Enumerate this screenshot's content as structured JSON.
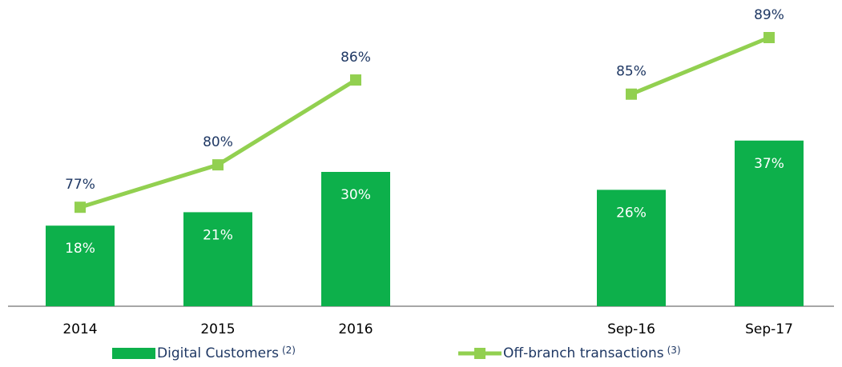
{
  "chart_data": {
    "type": "bar_line",
    "categories": [
      "2014",
      "2015",
      "2016",
      null,
      "Sep-16",
      "Sep-17"
    ],
    "ylim": [
      0,
      60
    ],
    "y2lim": [
      70,
      89
    ],
    "legend": "bottom",
    "series": [
      {
        "name": "Digital Customers",
        "footnote": "(2)",
        "type": "bar",
        "color": "#0db04b",
        "values": [
          18,
          21,
          30,
          null,
          26,
          37
        ],
        "value_labels": [
          "18%",
          "21%",
          "30%",
          null,
          "26%",
          "37%"
        ]
      },
      {
        "name": "Off-branch transactions",
        "footnote": "(3)",
        "type": "line",
        "axis": "y2",
        "color": "#92d050",
        "values": [
          77,
          80,
          86,
          null,
          85,
          89
        ],
        "value_labels": [
          "77%",
          "80%",
          "86%",
          null,
          "85%",
          "89%"
        ]
      }
    ]
  }
}
